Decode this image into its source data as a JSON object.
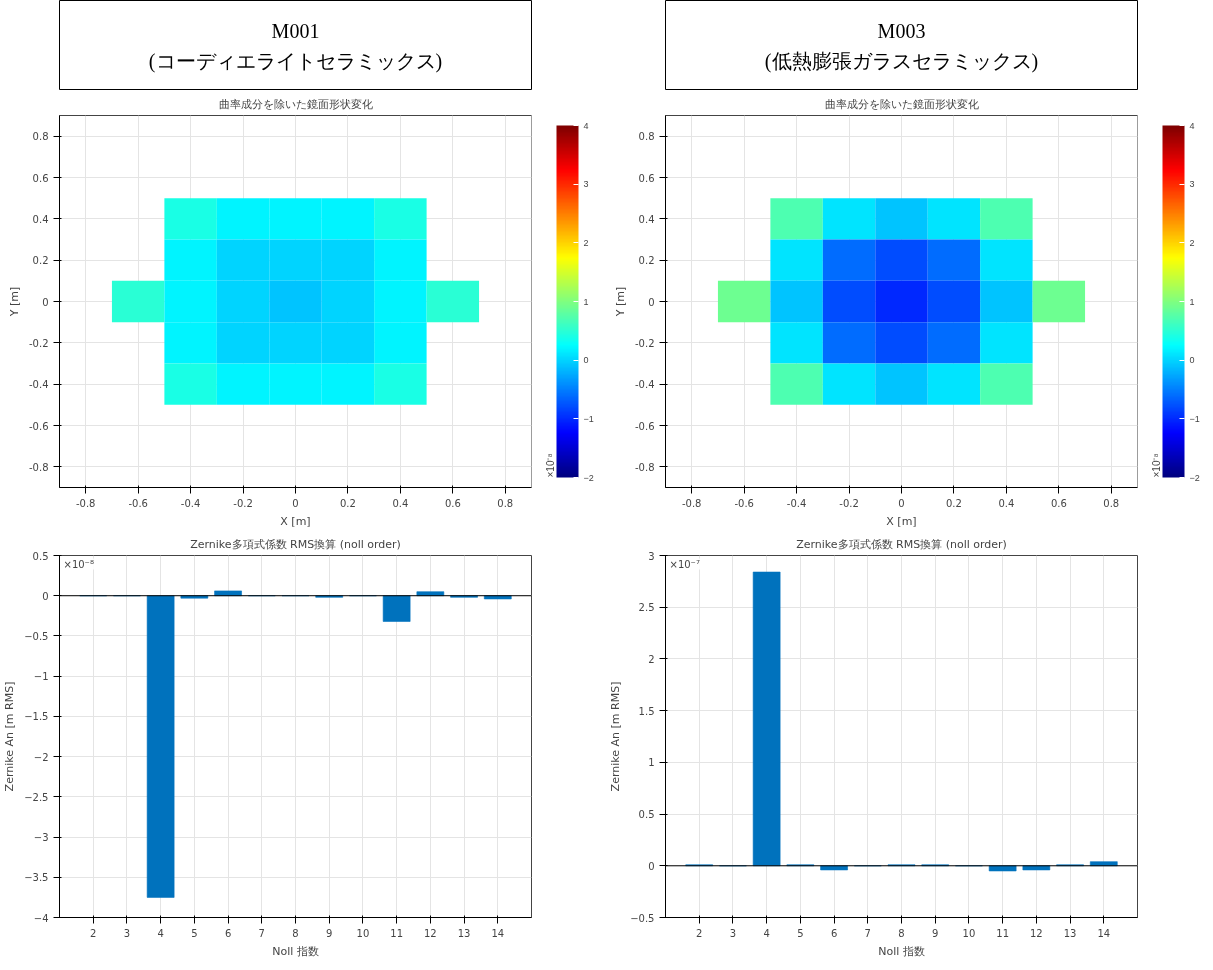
{
  "chart_data": [
    {
      "type": "other",
      "title": "M001",
      "subtitle": "(コーディエライトセラミックス)"
    },
    {
      "type": "other",
      "title": "M003",
      "subtitle": "(低熱膨張ガラスセラミックス)"
    },
    {
      "type": "heatmap",
      "title": "曲率成分を除いた鏡面形状変化",
      "xlabel": "X [m]",
      "ylabel": "Y [m]",
      "annotations": [
        "×10⁻⁸"
      ],
      "categories": [
        "-0.8",
        "-0.6",
        "-0.4",
        "-0.2",
        "0",
        "0.2",
        "0.4",
        "0.6",
        "0.8"
      ],
      "y_categories": [
        "0.8",
        "0.6",
        "0.4",
        "0.2",
        "0",
        "-0.2",
        "-0.4",
        "-0.6",
        "-0.8"
      ],
      "cells": [
        [
          null,
          null,
          null,
          null,
          null,
          null,
          null,
          null,
          null
        ],
        [
          null,
          null,
          null,
          null,
          null,
          null,
          null,
          null,
          null
        ],
        [
          null,
          null,
          0.4,
          0.2,
          0.2,
          0.2,
          0.4,
          null,
          null
        ],
        [
          null,
          null,
          0.2,
          0.0,
          0.0,
          0.0,
          0.2,
          null,
          null
        ],
        [
          null,
          0.5,
          0.2,
          0.0,
          -0.1,
          0.0,
          0.2,
          0.5,
          null
        ],
        [
          null,
          null,
          0.2,
          0.0,
          0.0,
          0.0,
          0.2,
          null,
          null
        ],
        [
          null,
          null,
          0.4,
          0.2,
          0.2,
          0.2,
          0.4,
          null,
          null
        ],
        [
          null,
          null,
          null,
          null,
          null,
          null,
          null,
          null,
          null
        ],
        [
          null,
          null,
          null,
          null,
          null,
          null,
          null,
          null,
          null
        ]
      ],
      "clim": [
        -2,
        4
      ],
      "cticks": [
        -2,
        -1,
        0,
        1,
        2,
        3,
        4
      ],
      "grid": true
    },
    {
      "type": "heatmap",
      "title": "曲率成分を除いた鏡面形状変化",
      "xlabel": "X [m]",
      "ylabel": "Y [m]",
      "annotations": [
        "×10⁻⁸"
      ],
      "categories": [
        "-0.8",
        "-0.6",
        "-0.4",
        "-0.2",
        "0",
        "0.2",
        "0.4",
        "0.6",
        "0.8"
      ],
      "y_categories": [
        "0.8",
        "0.6",
        "0.4",
        "0.2",
        "0",
        "-0.2",
        "-0.4",
        "-0.6",
        "-0.8"
      ],
      "cells": [
        [
          null,
          null,
          null,
          null,
          null,
          null,
          null,
          null,
          null
        ],
        [
          null,
          null,
          null,
          null,
          null,
          null,
          null,
          null,
          null
        ],
        [
          null,
          null,
          0.7,
          0.1,
          -0.1,
          0.1,
          0.7,
          null,
          null
        ],
        [
          null,
          null,
          0.1,
          -0.6,
          -0.8,
          -0.6,
          0.1,
          null,
          null
        ],
        [
          null,
          0.9,
          -0.1,
          -0.8,
          -1.0,
          -0.8,
          -0.1,
          0.9,
          null
        ],
        [
          null,
          null,
          0.1,
          -0.6,
          -0.8,
          -0.6,
          0.1,
          null,
          null
        ],
        [
          null,
          null,
          0.7,
          0.1,
          -0.1,
          0.1,
          0.7,
          null,
          null
        ],
        [
          null,
          null,
          null,
          null,
          null,
          null,
          null,
          null,
          null
        ],
        [
          null,
          null,
          null,
          null,
          null,
          null,
          null,
          null,
          null
        ]
      ],
      "clim": [
        -2,
        4
      ],
      "cticks": [
        -2,
        -1,
        0,
        1,
        2,
        3,
        4
      ],
      "grid": true
    },
    {
      "type": "bar",
      "title": "Zernike多項式係数 RMS換算 (noll order)",
      "xlabel": "Noll 指数",
      "ylabel": "Zernike An [m RMS]",
      "annotations": [
        "×10⁻⁸"
      ],
      "categories": [
        "2",
        "3",
        "4",
        "5",
        "6",
        "7",
        "8",
        "9",
        "10",
        "11",
        "12",
        "13",
        "14"
      ],
      "series": [
        {
          "color": "#0072bd",
          "values": [
            0.0,
            0.0,
            -3.75,
            -0.03,
            0.06,
            0.0,
            0.0,
            -0.02,
            0.0,
            -0.32,
            0.05,
            -0.02,
            -0.04
          ]
        }
      ],
      "ylim": [
        -4,
        0.5
      ],
      "yticks": [
        -4,
        -3.5,
        -3,
        -2.5,
        -2,
        -1.5,
        -1,
        -0.5,
        0,
        0.5
      ],
      "grid": true,
      "ref_lines": [
        {
          "axis": "y",
          "value": 0,
          "color": "#000000"
        }
      ]
    },
    {
      "type": "bar",
      "title": "Zernike多項式係数 RMS換算 (noll order)",
      "xlabel": "Noll 指数",
      "ylabel": "Zernike An [m RMS]",
      "annotations": [
        "×10⁻⁷"
      ],
      "categories": [
        "2",
        "3",
        "4",
        "5",
        "6",
        "7",
        "8",
        "9",
        "10",
        "11",
        "12",
        "13",
        "14"
      ],
      "series": [
        {
          "color": "#0072bd",
          "values": [
            0.01,
            0.0,
            2.84,
            0.01,
            -0.04,
            0.0,
            0.01,
            0.01,
            0.0,
            -0.05,
            -0.04,
            0.01,
            0.04
          ]
        }
      ],
      "ylim": [
        -0.5,
        3
      ],
      "yticks": [
        -0.5,
        0,
        0.5,
        1,
        1.5,
        2,
        2.5,
        3
      ],
      "grid": true,
      "ref_lines": [
        {
          "axis": "y",
          "value": 0,
          "color": "#000000"
        }
      ]
    }
  ]
}
